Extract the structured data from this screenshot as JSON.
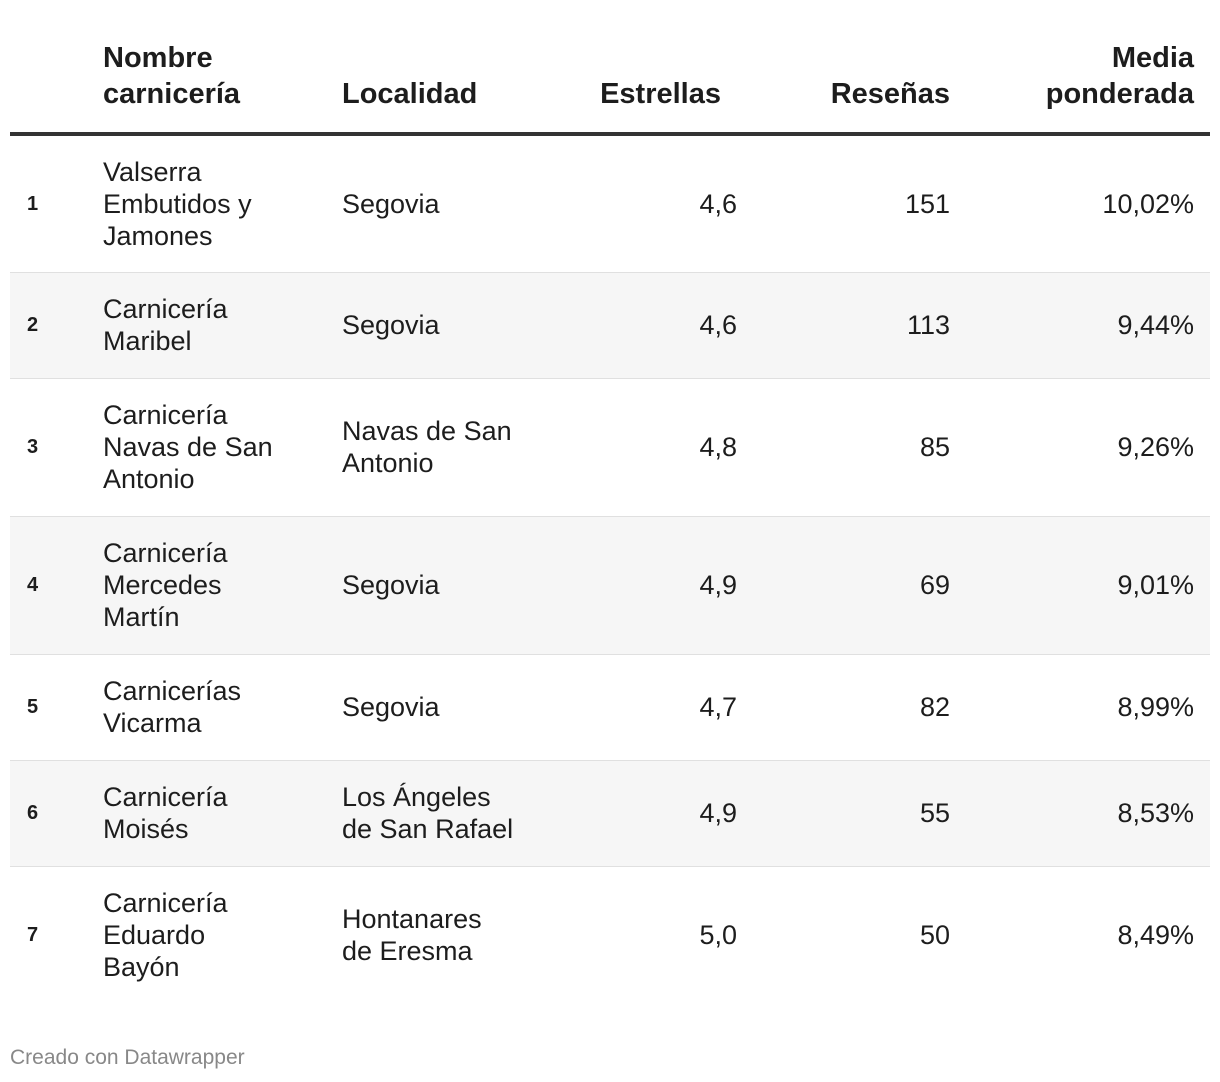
{
  "chart_data": {
    "type": "table",
    "columns": [
      {
        "key": "rank",
        "label": ""
      },
      {
        "key": "name",
        "label": "Nombre carnicería"
      },
      {
        "key": "locality",
        "label": "Localidad"
      },
      {
        "key": "stars",
        "label": "Estrellas"
      },
      {
        "key": "reviews",
        "label": "Reseñas"
      },
      {
        "key": "weighted_avg",
        "label": "Media ponderada"
      }
    ],
    "header_lines": {
      "name": [
        "Nombre",
        "carnicería"
      ],
      "locality": [
        "Localidad"
      ],
      "stars": [
        "Estrellas"
      ],
      "reviews": [
        "Reseñas"
      ],
      "weighted_avg": [
        "Media",
        "ponderada"
      ]
    },
    "rows": [
      {
        "rank": "1",
        "name_lines": [
          "Valserra",
          "Embutidos y",
          "Jamones"
        ],
        "locality_lines": [
          "Segovia"
        ],
        "stars": "4,6",
        "reviews": "151",
        "weighted_avg": "10,02%",
        "height": 138
      },
      {
        "rank": "2",
        "name_lines": [
          "Carnicería",
          "Maribel"
        ],
        "locality_lines": [
          "Segovia"
        ],
        "stars": "4,6",
        "reviews": "113",
        "weighted_avg": "9,44%",
        "height": 106
      },
      {
        "rank": "3",
        "name_lines": [
          "Carnicería",
          "Navas de San",
          "Antonio"
        ],
        "locality_lines": [
          "Navas de San",
          "Antonio"
        ],
        "stars": "4,8",
        "reviews": "85",
        "weighted_avg": "9,26%",
        "height": 138
      },
      {
        "rank": "4",
        "name_lines": [
          "Carnicería",
          "Mercedes",
          "Martín"
        ],
        "locality_lines": [
          "Segovia"
        ],
        "stars": "4,9",
        "reviews": "69",
        "weighted_avg": "9,01%",
        "height": 138
      },
      {
        "rank": "5",
        "name_lines": [
          "Carnicerías",
          "Vicarma"
        ],
        "locality_lines": [
          "Segovia"
        ],
        "stars": "4,7",
        "reviews": "82",
        "weighted_avg": "8,99%",
        "height": 106
      },
      {
        "rank": "6",
        "name_lines": [
          "Carnicería",
          "Moisés"
        ],
        "locality_lines": [
          "Los Ángeles",
          "de San Rafael"
        ],
        "stars": "4,9",
        "reviews": "55",
        "weighted_avg": "8,53%",
        "height": 106
      },
      {
        "rank": "7",
        "name_lines": [
          "Carnicería",
          "Eduardo",
          "Bayón"
        ],
        "locality_lines": [
          "Hontanares",
          "de Eresma"
        ],
        "stars": "5,0",
        "reviews": "50",
        "weighted_avg": "8,49%",
        "height": 138
      }
    ]
  },
  "footer": {
    "credit": "Creado con Datawrapper"
  },
  "colors": {
    "text": "#1d1d1d",
    "header_rule": "#333333",
    "row_alt": "#f6f6f6",
    "row_divider": "#e0e0e0",
    "footer_text": "#888888"
  }
}
